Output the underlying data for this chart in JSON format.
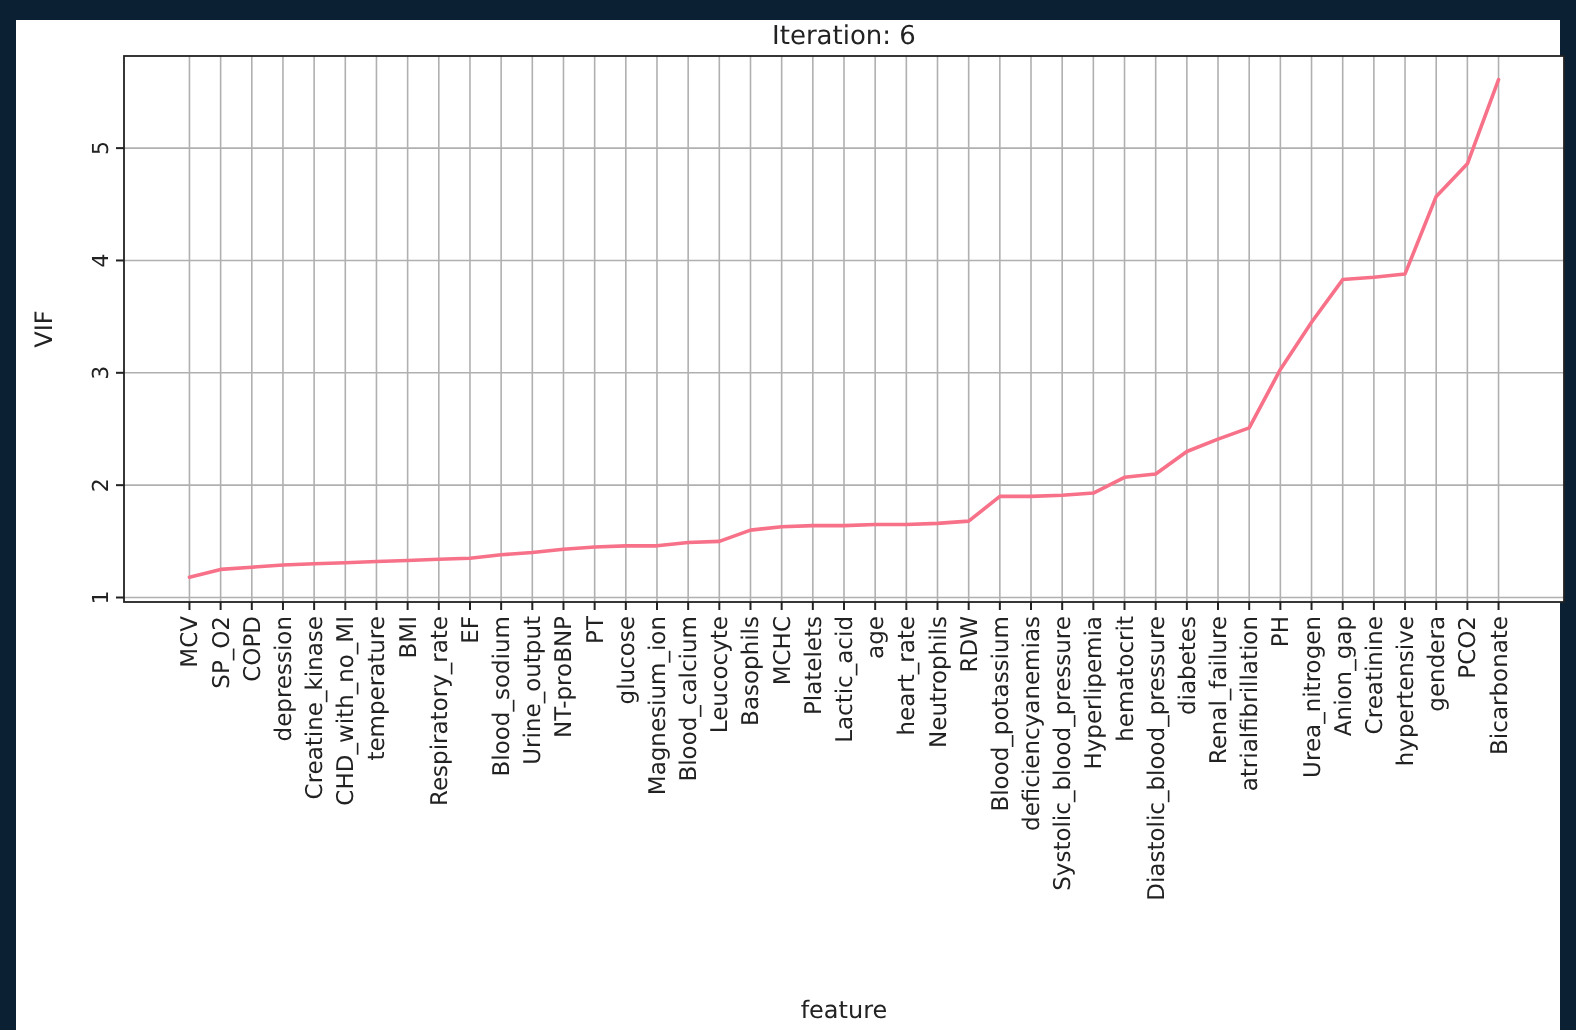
{
  "chart_data": {
    "type": "line",
    "title": "Iteration: 6",
    "xlabel": "feature",
    "ylabel": "VIF",
    "categories": [
      "MCV",
      "SP_O2",
      "COPD",
      "depression",
      "Creatine_kinase",
      "CHD_with_no_MI",
      "temperature",
      "BMI",
      "Respiratory_rate",
      "EF",
      "Blood_sodium",
      "Urine_output",
      "NT-proBNP",
      "PT",
      "glucose",
      "Magnesium_ion",
      "Blood_calcium",
      "Leucocyte",
      "Basophils",
      "MCHC",
      "Platelets",
      "Lactic_acid",
      "age",
      "heart_rate",
      "Neutrophils",
      "RDW",
      "Blood_potassium",
      "deficiencyanemias",
      "Systolic_blood_pressure",
      "Hyperlipemia",
      "hematocrit",
      "Diastolic_blood_pressure",
      "diabetes",
      "Renal_failure",
      "atrialfibrillation",
      "PH",
      "Urea_nitrogen",
      "Anion_gap",
      "Creatinine",
      "hypertensive",
      "gendera",
      "PCO2",
      "Bicarbonate"
    ],
    "series": [
      {
        "color": "#f77189",
        "values": [
          1.18,
          1.25,
          1.27,
          1.29,
          1.3,
          1.31,
          1.32,
          1.33,
          1.34,
          1.35,
          1.38,
          1.4,
          1.43,
          1.45,
          1.46,
          1.46,
          1.49,
          1.5,
          1.6,
          1.63,
          1.64,
          1.64,
          1.65,
          1.65,
          1.66,
          1.68,
          1.9,
          1.9,
          1.91,
          1.93,
          2.07,
          2.1,
          2.3,
          2.41,
          2.51,
          3.03,
          3.45,
          3.83,
          3.85,
          3.88,
          4.57,
          4.86,
          5.61
        ]
      }
    ],
    "ylim": [
      0.96,
      5.82
    ],
    "yticks": [
      1,
      2,
      3,
      4,
      5
    ],
    "grid": true,
    "marker": "none",
    "line_style": "solid"
  }
}
